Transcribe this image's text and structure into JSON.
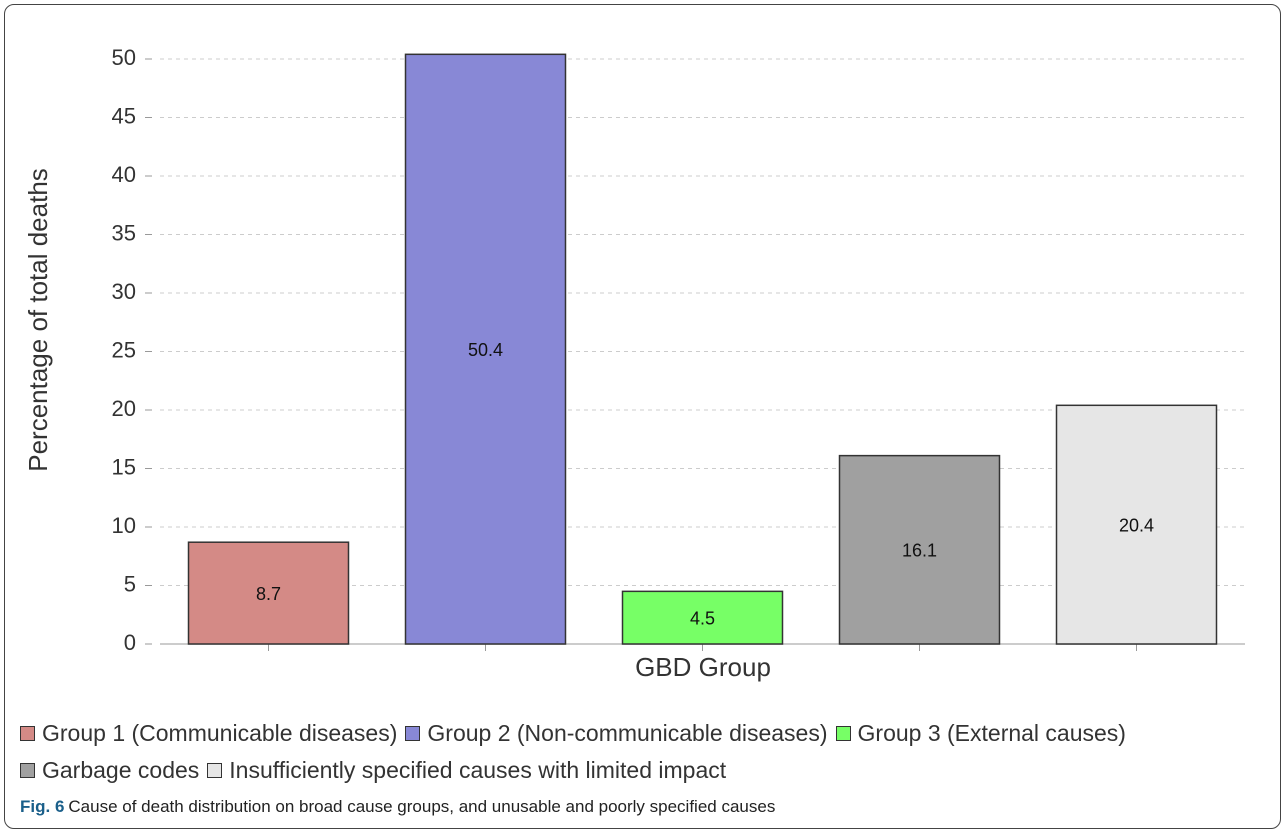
{
  "chart_data": {
    "type": "bar",
    "y_label": "Percentage of total deaths",
    "x_label": "GBD Group",
    "categories": [
      "Group 1 (Communicable diseases)",
      "Group 2 (Non-communicable diseases)",
      "Group 3 (External causes)",
      "Garbage codes",
      "Insufficiently specified causes with limited impact"
    ],
    "values": [
      8.7,
      50.4,
      4.5,
      16.1,
      20.4
    ],
    "colors": [
      "#d48a86",
      "#8888d6",
      "#77ff66",
      "#a0a0a0",
      "#e6e6e6"
    ],
    "ylim": [
      0,
      52
    ],
    "yticks": [
      0,
      5,
      10,
      15,
      20,
      25,
      30,
      35,
      40,
      45,
      50
    ],
    "grid": true,
    "caption_label": "Fig. 6",
    "caption": "Cause of death distribution on broad cause groups, and unusable and poorly specified causes"
  }
}
